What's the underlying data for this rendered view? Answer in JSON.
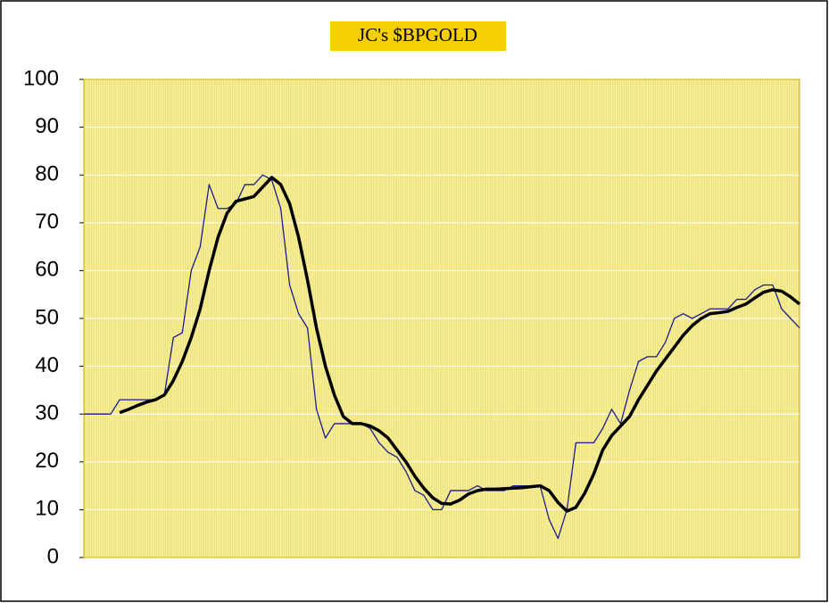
{
  "chart_data": {
    "type": "line",
    "title": "JC's $BPGOLD",
    "categories": [
      null,
      null,
      null,
      null,
      null,
      null,
      null,
      null,
      null,
      null,
      null,
      null,
      null,
      null,
      null,
      null,
      null,
      null,
      null,
      null,
      null,
      null,
      null,
      null,
      null,
      null,
      null,
      null,
      null,
      null,
      null,
      null,
      null,
      null,
      null,
      null,
      null,
      null,
      null,
      null,
      null,
      null,
      null,
      null,
      null,
      null,
      null,
      null,
      null,
      null,
      null,
      null,
      null,
      null,
      null,
      null,
      null,
      null,
      null,
      null,
      null,
      null,
      null,
      null,
      null,
      null,
      null,
      null,
      null,
      null,
      null,
      null,
      null,
      null,
      null,
      null,
      null,
      null,
      null,
      null,
      null
    ],
    "series": [
      {
        "color": "#1c1c8c",
        "values": [
          30,
          30,
          30,
          30,
          33,
          33,
          33,
          33,
          33,
          34,
          46,
          47,
          60,
          65,
          78,
          73,
          73,
          74,
          78,
          78,
          80,
          79,
          73,
          57,
          51,
          48,
          31,
          25,
          28,
          28,
          28,
          28,
          27,
          24,
          22,
          21,
          18,
          14,
          13,
          10,
          10,
          14,
          14,
          14,
          15,
          14,
          14,
          14,
          15,
          15,
          15,
          15,
          8,
          4,
          10,
          24,
          24,
          24,
          27,
          31,
          28,
          35,
          41,
          42,
          42,
          45,
          50,
          51,
          50,
          51,
          52,
          52,
          52,
          54,
          54,
          56,
          57,
          57,
          52,
          50,
          48
        ]
      },
      {
        "color": "#000000",
        "values": [
          null,
          null,
          null,
          null,
          30.3,
          31,
          31.8,
          32.5,
          33,
          34,
          37,
          41,
          46,
          52,
          60,
          67,
          72,
          74.5,
          75,
          75.5,
          77.5,
          79.5,
          78,
          74,
          67,
          58,
          48,
          40,
          34,
          29.5,
          28,
          28,
          27.5,
          26.5,
          25,
          22.5,
          20,
          17,
          14.5,
          12.5,
          11.3,
          11.2,
          12,
          13.3,
          14,
          14.3,
          14.3,
          14.4,
          14.5,
          14.6,
          14.8,
          15,
          14,
          11.5,
          9.7,
          10.5,
          13.5,
          17.5,
          22.5,
          25.5,
          27.5,
          29.5,
          33,
          36,
          39,
          41.5,
          44,
          46.5,
          48.5,
          50,
          51,
          51.2,
          51.5,
          52.3,
          53,
          54.3,
          55.5,
          56,
          55.7,
          54.5,
          53
        ]
      }
    ],
    "ylim": [
      0,
      100
    ],
    "yticks": [
      0,
      10,
      20,
      30,
      40,
      50,
      60,
      70,
      80,
      90,
      100
    ],
    "grid": true
  }
}
